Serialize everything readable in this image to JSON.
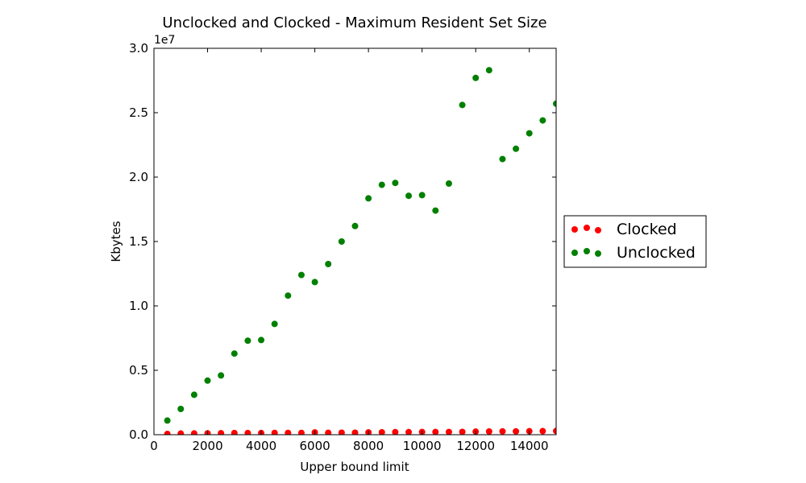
{
  "chart_data": {
    "type": "scatter",
    "title": "Unclocked and Clocked - Maximum Resident Set Size",
    "xlabel": "Upper bound limit",
    "ylabel": "Kbytes",
    "y_offset_text": "1e7",
    "xlim": [
      0,
      15000
    ],
    "ylim": [
      0,
      30000000
    ],
    "x_ticks": [
      0,
      2000,
      4000,
      6000,
      8000,
      10000,
      12000,
      14000
    ],
    "x_tick_labels": [
      "0",
      "2000",
      "4000",
      "6000",
      "8000",
      "10000",
      "12000",
      "14000"
    ],
    "y_ticks": [
      0,
      5000000,
      10000000,
      15000000,
      20000000,
      25000000,
      30000000
    ],
    "y_tick_labels": [
      "0.0",
      "0.5",
      "1.0",
      "1.5",
      "2.0",
      "2.5",
      "3.0"
    ],
    "grid": false,
    "legend_position": "outside-right",
    "x": [
      500,
      1000,
      1500,
      2000,
      2500,
      3000,
      3500,
      4000,
      4500,
      5000,
      5500,
      6000,
      6500,
      7000,
      7500,
      8000,
      8500,
      9000,
      9500,
      10000,
      10500,
      11000,
      11500,
      12000,
      12500,
      13000,
      13500,
      14000,
      14500,
      15000
    ],
    "series": [
      {
        "name": "Clocked",
        "color": "#ff0000",
        "values": [
          60000,
          90000,
          100000,
          110000,
          120000,
          130000,
          130000,
          130000,
          140000,
          140000,
          140000,
          180000,
          150000,
          160000,
          160000,
          180000,
          190000,
          200000,
          200000,
          210000,
          210000,
          210000,
          220000,
          240000,
          250000,
          260000,
          260000,
          270000,
          280000,
          290000
        ]
      },
      {
        "name": "Unclocked",
        "color": "#008000",
        "values": [
          1100000,
          2000000,
          3100000,
          4200000,
          4600000,
          6300000,
          7300000,
          7350000,
          8600000,
          10800000,
          12400000,
          11850000,
          13250000,
          15000000,
          16200000,
          18350000,
          19400000,
          19550000,
          18550000,
          18600000,
          17400000,
          19500000,
          25600000,
          27700000,
          28300000,
          21400000,
          22200000,
          23400000,
          24400000,
          25700000
        ]
      }
    ]
  }
}
